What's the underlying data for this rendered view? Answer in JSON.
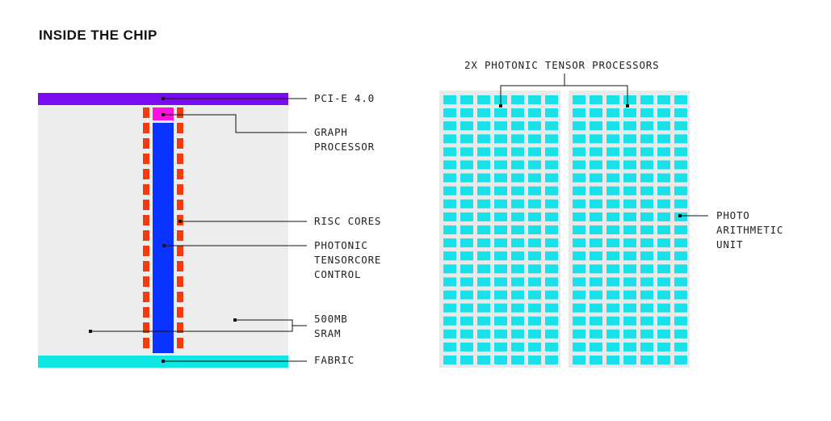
{
  "title": "INSIDE THE CHIP",
  "colors": {
    "pcie": "#7a0df0",
    "graph_processor": "#ff10e0",
    "risc_cores": "#f03c0f",
    "tensorcore_control": "#0a33ff",
    "sram_bg": "#ededed",
    "fabric": "#0fe6e4",
    "arithmetic_unit": "#18e1e9",
    "processor_bg": "#e9e9e9",
    "line": "#111111"
  },
  "left_labels": {
    "pcie": "PCI-E 4.0",
    "graph_processor": [
      "GRAPH",
      "PROCESSOR"
    ],
    "risc_cores": "RISC CORES",
    "tensorcore_control": [
      "PHOTONIC",
      "TENSORCORE",
      "CONTROL"
    ],
    "sram": [
      "500MB",
      "SRAM"
    ],
    "fabric": "FABRIC"
  },
  "right_labels": {
    "processors": "2X PHOTONIC TENSOR PROCESSORS",
    "arithmetic_unit": [
      "PHOTO",
      "ARITHMETIC",
      "UNIT"
    ]
  },
  "grid": {
    "processors": 2,
    "columns": 7,
    "rows": 21
  }
}
